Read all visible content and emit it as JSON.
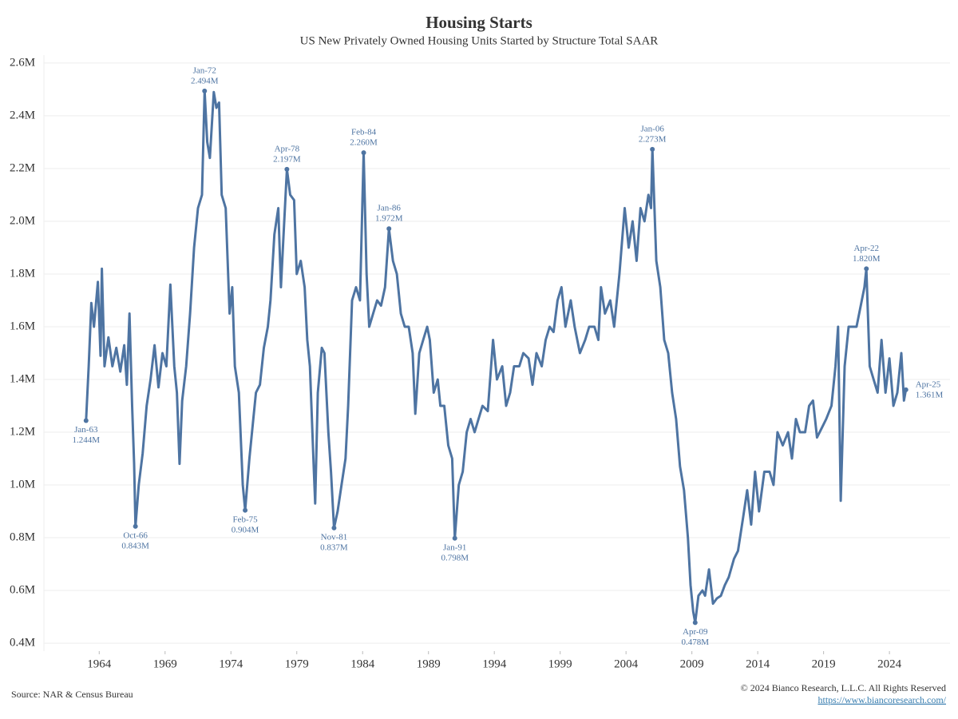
{
  "chart_data": {
    "type": "line",
    "title": "Housing Starts",
    "subtitle": "US New Privately Owned Housing Units Started by Structure Total SAAR",
    "source": "Source: NAR & Census Bureau",
    "copyright": "© 2024 Bianco Research, L.L.C. All Rights Reserved",
    "url": "https://www.biancoresearch.com/",
    "xlim": [
      1959.8,
      2028.6
    ],
    "xticks": [
      1964,
      1969,
      1974,
      1979,
      1984,
      1989,
      1994,
      1999,
      2004,
      2009,
      2014,
      2019,
      2024
    ],
    "ylim": [
      0.37,
      2.63
    ],
    "yticks": [
      {
        "value": 0.4,
        "label": "0.4M"
      },
      {
        "value": 0.6,
        "label": "0.6M"
      },
      {
        "value": 0.8,
        "label": "0.8M"
      },
      {
        "value": 1.0,
        "label": "1.0M"
      },
      {
        "value": 1.2,
        "label": "1.2M"
      },
      {
        "value": 1.4,
        "label": "1.4M"
      },
      {
        "value": 1.6,
        "label": "1.6M"
      },
      {
        "value": 1.8,
        "label": "1.8M"
      },
      {
        "value": 2.0,
        "label": "2.0M"
      },
      {
        "value": 2.2,
        "label": "2.2M"
      },
      {
        "value": 2.4,
        "label": "2.4M"
      },
      {
        "value": 2.6,
        "label": "2.6M"
      }
    ],
    "grid": true,
    "x": [
      1963.0,
      1963.2,
      1963.4,
      1963.6,
      1963.9,
      1964.1,
      1964.2,
      1964.4,
      1964.7,
      1965.0,
      1965.3,
      1965.6,
      1965.9,
      1966.1,
      1966.3,
      1966.5,
      1966.65,
      1966.75,
      1967.0,
      1967.3,
      1967.6,
      1967.9,
      1968.2,
      1968.5,
      1968.8,
      1969.1,
      1969.4,
      1969.7,
      1969.9,
      1970.1,
      1970.3,
      1970.6,
      1970.9,
      1971.2,
      1971.5,
      1971.8,
      1972.0,
      1972.2,
      1972.4,
      1972.7,
      1972.9,
      1973.1,
      1973.3,
      1973.6,
      1973.9,
      1974.1,
      1974.3,
      1974.6,
      1974.9,
      1975.08,
      1975.4,
      1975.7,
      1975.9,
      1976.2,
      1976.5,
      1976.8,
      1977.0,
      1977.3,
      1977.6,
      1977.8,
      1978.0,
      1978.25,
      1978.5,
      1978.8,
      1979.0,
      1979.3,
      1979.6,
      1979.8,
      1980.0,
      1980.3,
      1980.4,
      1980.6,
      1980.9,
      1981.1,
      1981.4,
      1981.6,
      1981.83,
      1982.1,
      1982.4,
      1982.7,
      1982.9,
      1983.2,
      1983.5,
      1983.8,
      1984.08,
      1984.3,
      1984.5,
      1984.8,
      1985.1,
      1985.4,
      1985.7,
      1986.0,
      1986.3,
      1986.6,
      1986.9,
      1987.2,
      1987.5,
      1987.8,
      1988.0,
      1988.3,
      1988.6,
      1988.9,
      1989.1,
      1989.4,
      1989.7,
      1989.9,
      1990.2,
      1990.5,
      1990.8,
      1991.0,
      1991.3,
      1991.6,
      1991.9,
      1992.2,
      1992.5,
      1992.8,
      1993.1,
      1993.5,
      1993.9,
      1994.2,
      1994.6,
      1994.9,
      1995.2,
      1995.5,
      1995.9,
      1996.2,
      1996.6,
      1996.9,
      1997.2,
      1997.6,
      1997.9,
      1998.2,
      1998.5,
      1998.8,
      1999.1,
      1999.4,
      1999.8,
      2000.1,
      2000.5,
      2000.9,
      2001.2,
      2001.6,
      2001.9,
      2002.1,
      2002.4,
      2002.8,
      2003.1,
      2003.5,
      2003.9,
      2004.2,
      2004.5,
      2004.8,
      2005.1,
      2005.4,
      2005.7,
      2005.9,
      2006.0,
      2006.3,
      2006.6,
      2006.9,
      2007.2,
      2007.5,
      2007.8,
      2008.1,
      2008.4,
      2008.7,
      2008.9,
      2009.1,
      2009.25,
      2009.5,
      2009.8,
      2010.0,
      2010.3,
      2010.6,
      2010.9,
      2011.2,
      2011.5,
      2011.8,
      2012.2,
      2012.5,
      2012.9,
      2013.2,
      2013.5,
      2013.8,
      2014.1,
      2014.5,
      2014.9,
      2015.2,
      2015.5,
      2015.9,
      2016.3,
      2016.6,
      2016.9,
      2017.2,
      2017.6,
      2017.9,
      2018.2,
      2018.5,
      2018.9,
      2019.2,
      2019.6,
      2019.9,
      2020.1,
      2020.3,
      2020.6,
      2020.9,
      2021.2,
      2021.5,
      2021.9,
      2022.1,
      2022.25,
      2022.5,
      2022.8,
      2023.1,
      2023.4,
      2023.7,
      2024.0,
      2024.3,
      2024.6,
      2024.9,
      2025.1,
      2025.25
    ],
    "series": [
      {
        "color": "#4e74a2",
        "values": [
          1.244,
          1.45,
          1.69,
          1.6,
          1.77,
          1.49,
          1.82,
          1.45,
          1.56,
          1.45,
          1.52,
          1.43,
          1.53,
          1.38,
          1.65,
          1.3,
          1.08,
          0.843,
          1.0,
          1.12,
          1.3,
          1.4,
          1.53,
          1.37,
          1.5,
          1.45,
          1.76,
          1.45,
          1.35,
          1.08,
          1.32,
          1.45,
          1.65,
          1.9,
          2.05,
          2.1,
          2.494,
          2.3,
          2.24,
          2.49,
          2.43,
          2.45,
          2.1,
          2.05,
          1.65,
          1.75,
          1.45,
          1.35,
          1.0,
          0.904,
          1.1,
          1.25,
          1.35,
          1.38,
          1.52,
          1.6,
          1.7,
          1.95,
          2.05,
          1.75,
          1.95,
          2.197,
          2.1,
          2.08,
          1.8,
          1.85,
          1.75,
          1.55,
          1.45,
          1.05,
          0.93,
          1.35,
          1.52,
          1.5,
          1.2,
          1.05,
          0.837,
          0.9,
          1.0,
          1.1,
          1.3,
          1.7,
          1.75,
          1.7,
          2.26,
          1.8,
          1.6,
          1.65,
          1.7,
          1.68,
          1.75,
          1.972,
          1.85,
          1.8,
          1.65,
          1.6,
          1.6,
          1.5,
          1.27,
          1.5,
          1.55,
          1.6,
          1.55,
          1.35,
          1.4,
          1.3,
          1.3,
          1.15,
          1.1,
          0.798,
          1.0,
          1.05,
          1.2,
          1.25,
          1.2,
          1.25,
          1.3,
          1.28,
          1.55,
          1.4,
          1.45,
          1.3,
          1.35,
          1.45,
          1.45,
          1.5,
          1.48,
          1.38,
          1.5,
          1.45,
          1.55,
          1.6,
          1.58,
          1.7,
          1.75,
          1.6,
          1.7,
          1.6,
          1.5,
          1.55,
          1.6,
          1.6,
          1.55,
          1.75,
          1.65,
          1.7,
          1.6,
          1.8,
          2.05,
          1.9,
          2.0,
          1.85,
          2.05,
          2.0,
          2.1,
          2.05,
          2.273,
          1.85,
          1.75,
          1.55,
          1.5,
          1.35,
          1.25,
          1.07,
          0.98,
          0.8,
          0.62,
          0.52,
          0.478,
          0.58,
          0.6,
          0.58,
          0.68,
          0.55,
          0.57,
          0.58,
          0.62,
          0.65,
          0.72,
          0.75,
          0.88,
          0.98,
          0.85,
          1.05,
          0.9,
          1.05,
          1.05,
          1.0,
          1.2,
          1.15,
          1.2,
          1.1,
          1.25,
          1.2,
          1.2,
          1.3,
          1.32,
          1.18,
          1.22,
          1.25,
          1.3,
          1.45,
          1.6,
          0.94,
          1.45,
          1.6,
          1.6,
          1.6,
          1.7,
          1.75,
          1.82,
          1.45,
          1.4,
          1.35,
          1.55,
          1.35,
          1.48,
          1.3,
          1.35,
          1.5,
          1.32,
          1.361
        ]
      }
    ],
    "annotations": [
      {
        "label": "Jan-63",
        "value_label": "1.244M",
        "x": 1963.0,
        "y": 1.244
      },
      {
        "label": "Oct-66",
        "value_label": "0.843M",
        "x": 1966.75,
        "y": 0.843
      },
      {
        "label": "Jan-72",
        "value_label": "2.494M",
        "x": 1972.0,
        "y": 2.494
      },
      {
        "label": "Feb-75",
        "value_label": "0.904M",
        "x": 1975.08,
        "y": 0.904
      },
      {
        "label": "Apr-78",
        "value_label": "2.197M",
        "x": 1978.25,
        "y": 2.197
      },
      {
        "label": "Nov-81",
        "value_label": "0.837M",
        "x": 1981.83,
        "y": 0.837
      },
      {
        "label": "Feb-84",
        "value_label": "2.260M",
        "x": 1984.08,
        "y": 2.26
      },
      {
        "label": "Jan-86",
        "value_label": "1.972M",
        "x": 1986.0,
        "y": 1.972
      },
      {
        "label": "Jan-91",
        "value_label": "0.798M",
        "x": 1991.0,
        "y": 0.798
      },
      {
        "label": "Jan-06",
        "value_label": "2.273M",
        "x": 2006.0,
        "y": 2.273
      },
      {
        "label": "Apr-09",
        "value_label": "0.478M",
        "x": 2009.25,
        "y": 0.478
      },
      {
        "label": "Apr-22",
        "value_label": "1.820M",
        "x": 2022.25,
        "y": 1.82
      },
      {
        "label": "Apr-25",
        "value_label": "1.361M",
        "x": 2025.25,
        "y": 1.361
      }
    ]
  }
}
